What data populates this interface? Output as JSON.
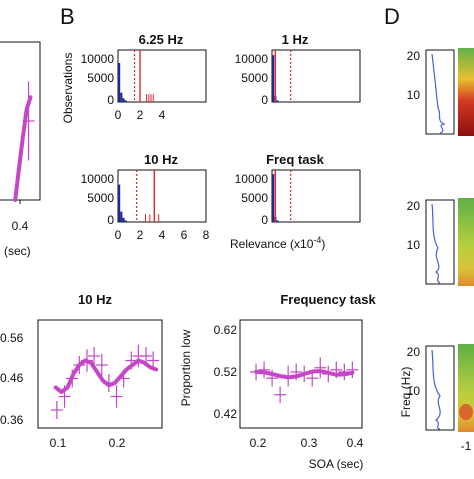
{
  "panel_labels": {
    "b": "B",
    "d": "D"
  },
  "histograms": {
    "ylabel": "Observations",
    "xlabel": "Relevance (x10",
    "xlabel_exp": "-4",
    "xlabel_close": ")",
    "yticks": [
      "10000",
      "5000",
      "0"
    ],
    "xticks": [
      "0",
      "2",
      "4",
      "6",
      "8"
    ],
    "panels": [
      {
        "title": "6.25 Hz"
      },
      {
        "title": "1 Hz"
      },
      {
        "title": "10 Hz"
      },
      {
        "title": "Freq task"
      }
    ]
  },
  "left_partial": {
    "xtick": "0.4",
    "xlabel": "(sec)",
    "yticks": [
      "0.56",
      "0.46",
      "0.36"
    ]
  },
  "bottom": {
    "left_title": "10 Hz",
    "right_title": "Frequency task",
    "right_yticks": [
      "0.62",
      "0.52",
      "0.42"
    ],
    "ylabel": "Proportion low",
    "left_xticks": [
      "0.1",
      "0.2"
    ],
    "right_xticks": [
      "0.2",
      "0.3",
      "0.4"
    ],
    "xlabel": "SOA (sec)"
  },
  "panel_d": {
    "yticks": [
      "20",
      "10"
    ],
    "ylabel": "Freq (Hz)",
    "xtick": "-1"
  },
  "colors": {
    "magenta": "#c546c8",
    "bar_blue": "#1f2a8a",
    "red": "#e3242b",
    "trace_blue": "#4a5fd0"
  },
  "chart_data": [
    {
      "type": "bar",
      "title": "6.25 Hz",
      "xlabel": "Relevance (x10-4)",
      "ylabel": "Observations",
      "xlim": [
        0,
        8
      ],
      "ylim": [
        0,
        10000
      ],
      "histogram": {
        "x": [
          0.1,
          0.3,
          0.5,
          0.7
        ],
        "values": [
          7500,
          1800,
          700,
          300
        ]
      },
      "solid_line_x": 2.0,
      "dashed_line_x": 1.5,
      "red_ticks": {
        "x": [
          2.6,
          2.8,
          3.0,
          3.2
        ],
        "values": [
          1500,
          1500,
          1500,
          1500
        ]
      }
    },
    {
      "type": "bar",
      "title": "1 Hz",
      "xlim": [
        0,
        8
      ],
      "ylim": [
        0,
        10000
      ],
      "histogram": {
        "x": [
          0.1,
          0.3,
          0.5
        ],
        "values": [
          9000,
          1200,
          300
        ]
      },
      "solid_line_x": 0.3,
      "dashed_line_x": 1.7
    },
    {
      "type": "bar",
      "title": "10 Hz",
      "xlim": [
        0,
        8
      ],
      "ylim": [
        0,
        10000
      ],
      "histogram": {
        "x": [
          0.1,
          0.3,
          0.5,
          0.7
        ],
        "values": [
          7200,
          2000,
          800,
          300
        ]
      },
      "solid_line_x": 3.3,
      "dashed_line_x": 1.7,
      "red_ticks": {
        "x": [
          2.5,
          2.9,
          3.7
        ],
        "values": [
          1500,
          1500,
          1500
        ]
      }
    },
    {
      "type": "bar",
      "title": "Freq task",
      "xlim": [
        0,
        8
      ],
      "ylim": [
        0,
        10000
      ],
      "histogram": {
        "x": [
          0.1,
          0.3,
          0.5
        ],
        "values": [
          9200,
          1000,
          300
        ]
      },
      "solid_line_x": 0.3,
      "dashed_line_x": 1.7
    },
    {
      "type": "line",
      "title": "10 Hz",
      "xlabel": "SOA (sec)",
      "xlim": [
        0.08,
        0.29
      ],
      "ylim": [
        0.34,
        0.58
      ],
      "points": {
        "x": [
          0.112,
          0.125,
          0.138,
          0.15,
          0.163,
          0.175,
          0.188,
          0.2,
          0.213,
          0.225,
          0.238,
          0.25,
          0.263,
          0.275
        ],
        "y": [
          0.38,
          0.41,
          0.45,
          0.48,
          0.49,
          0.5,
          0.48,
          0.44,
          0.41,
          0.45,
          0.49,
          0.5,
          0.5,
          0.49
        ],
        "err": [
          0.02,
          0.025,
          0.02,
          0.02,
          0.025,
          0.02,
          0.025,
          0.02,
          0.025,
          0.02,
          0.02,
          0.025,
          0.02,
          0.02
        ]
      },
      "fit": {
        "x": [
          0.11,
          0.12,
          0.13,
          0.14,
          0.15,
          0.16,
          0.17,
          0.18,
          0.19,
          0.2,
          0.21,
          0.22,
          0.23,
          0.24,
          0.25,
          0.26,
          0.27,
          0.28
        ],
        "y": [
          0.43,
          0.42,
          0.43,
          0.46,
          0.48,
          0.49,
          0.485,
          0.465,
          0.445,
          0.435,
          0.44,
          0.455,
          0.47,
          0.48,
          0.49,
          0.485,
          0.475,
          0.47
        ]
      }
    },
    {
      "type": "line",
      "title": "Frequency task",
      "ylabel": "Proportion low",
      "xlabel": "SOA (sec)",
      "xlim": [
        0.05,
        0.43
      ],
      "ylim": [
        0.39,
        0.65
      ],
      "points": {
        "x": [
          0.1,
          0.125,
          0.15,
          0.175,
          0.2,
          0.225,
          0.25,
          0.275,
          0.3,
          0.325,
          0.35,
          0.375,
          0.4
        ],
        "y": [
          0.525,
          0.53,
          0.51,
          0.47,
          0.515,
          0.525,
          0.52,
          0.51,
          0.535,
          0.52,
          0.53,
          0.525,
          0.53
        ],
        "err": [
          0.02,
          0.02,
          0.02,
          0.02,
          0.025,
          0.02,
          0.02,
          0.02,
          0.025,
          0.02,
          0.02,
          0.02,
          0.02
        ]
      },
      "fit": {
        "x": [
          0.1,
          0.125,
          0.15,
          0.175,
          0.2,
          0.225,
          0.25,
          0.275,
          0.3,
          0.325,
          0.35,
          0.375,
          0.4
        ],
        "y": [
          0.525,
          0.524,
          0.52,
          0.515,
          0.512,
          0.514,
          0.52,
          0.526,
          0.527,
          0.523,
          0.518,
          0.519,
          0.523
        ]
      }
    },
    {
      "type": "line",
      "title": "",
      "xlim": [
        0.25,
        0.46
      ],
      "ylim": [
        0.3,
        0.7
      ],
      "points": {
        "x": [
          0.4
        ],
        "y": [
          0.5
        ],
        "err": [
          0.1
        ]
      },
      "fit": {
        "x": [
          0.33,
          0.35,
          0.37,
          0.39,
          0.41
        ],
        "y": [
          0.3,
          0.38,
          0.46,
          0.53,
          0.56
        ]
      }
    }
  ]
}
